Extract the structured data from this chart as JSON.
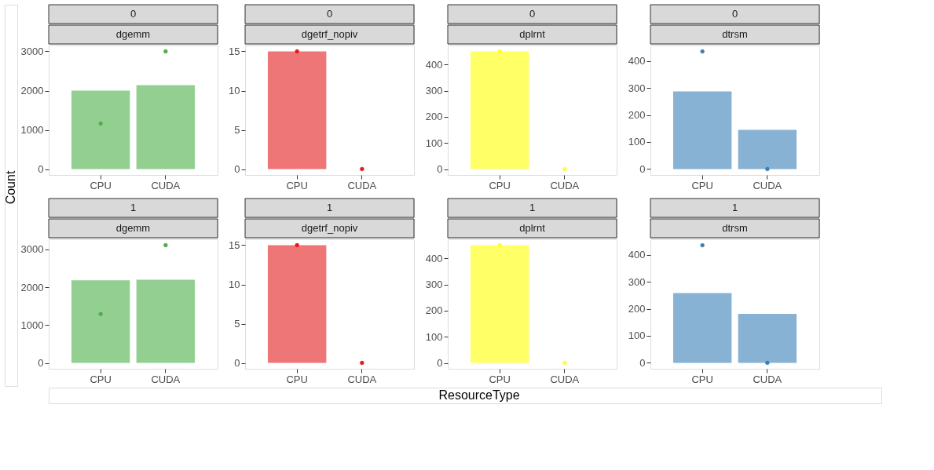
{
  "chart_data": [
    {
      "type": "bar",
      "title": "0",
      "subtitle": "dgemm",
      "ylabel": "Count",
      "categories": [
        "CPU",
        "CUDA"
      ],
      "ylim": [
        -150,
        3150
      ],
      "yticks": [
        0,
        1000,
        2000,
        3000
      ],
      "grid": false,
      "series": [
        {
          "color": "#94cf92",
          "values": [
            2000,
            2140
          ]
        },
        {
          "type": "scatter",
          "color": "#4daf4a",
          "values": [
            1160,
            3000
          ]
        }
      ]
    },
    {
      "type": "bar",
      "title": "0",
      "subtitle": "dgetrf_nopiv",
      "categories": [
        "CPU",
        "CUDA"
      ],
      "ylim": [
        -0.75,
        15.75
      ],
      "yticks": [
        0,
        5,
        10,
        15
      ],
      "grid": false,
      "series": [
        {
          "color": "#ef7676",
          "values": [
            15,
            0
          ]
        },
        {
          "type": "scatter",
          "color": "#e41a1c",
          "values": [
            15,
            0
          ]
        }
      ]
    },
    {
      "type": "bar",
      "title": "0",
      "subtitle": "dplrnt",
      "categories": [
        "CPU",
        "CUDA"
      ],
      "ylim": [
        -22.5,
        472.5
      ],
      "yticks": [
        0,
        100,
        200,
        300,
        400
      ],
      "grid": false,
      "series": [
        {
          "color": "#ffff66",
          "values": [
            450,
            0
          ]
        },
        {
          "type": "scatter",
          "color": "#ffff33",
          "values": [
            450,
            0
          ]
        }
      ]
    },
    {
      "type": "bar",
      "title": "0",
      "subtitle": "dtrsm",
      "categories": [
        "CPU",
        "CUDA"
      ],
      "ylim": [
        -22,
        457
      ],
      "yticks": [
        0,
        100,
        200,
        300,
        400
      ],
      "grid": false,
      "series": [
        {
          "color": "#87b2d4",
          "values": [
            287,
            145
          ]
        },
        {
          "type": "scatter",
          "color": "#377eb8",
          "values": [
            435,
            0
          ]
        }
      ]
    },
    {
      "type": "bar",
      "title": "1",
      "subtitle": "dgemm",
      "categories": [
        "CPU",
        "CUDA"
      ],
      "ylim": [
        -155,
        3265
      ],
      "yticks": [
        0,
        1000,
        2000,
        3000
      ],
      "grid": false,
      "series": [
        {
          "color": "#94cf92",
          "values": [
            2180,
            2200
          ]
        },
        {
          "type": "scatter",
          "color": "#4daf4a",
          "values": [
            1290,
            3110
          ]
        }
      ]
    },
    {
      "type": "bar",
      "title": "1",
      "subtitle": "dgetrf_nopiv",
      "categories": [
        "CPU",
        "CUDA"
      ],
      "ylim": [
        -0.75,
        15.75
      ],
      "yticks": [
        0,
        5,
        10,
        15
      ],
      "grid": false,
      "series": [
        {
          "color": "#ef7676",
          "values": [
            15,
            0
          ]
        },
        {
          "type": "scatter",
          "color": "#e41a1c",
          "values": [
            15,
            0
          ]
        }
      ]
    },
    {
      "type": "bar",
      "title": "1",
      "subtitle": "dplrnt",
      "xlabel": "ResourceType",
      "categories": [
        "CPU",
        "CUDA"
      ],
      "ylim": [
        -22.5,
        472.5
      ],
      "yticks": [
        0,
        100,
        200,
        300,
        400
      ],
      "grid": false,
      "series": [
        {
          "color": "#ffff66",
          "values": [
            450,
            0
          ]
        },
        {
          "type": "scatter",
          "color": "#ffff33",
          "values": [
            450,
            0
          ]
        }
      ]
    },
    {
      "type": "bar",
      "title": "1",
      "subtitle": "dtrsm",
      "categories": [
        "CPU",
        "CUDA"
      ],
      "ylim": [
        -22,
        457
      ],
      "yticks": [
        0,
        100,
        200,
        300,
        400
      ],
      "grid": false,
      "series": [
        {
          "color": "#87b2d4",
          "values": [
            258,
            181
          ]
        },
        {
          "type": "scatter",
          "color": "#377eb8",
          "values": [
            435,
            0
          ]
        }
      ]
    }
  ]
}
